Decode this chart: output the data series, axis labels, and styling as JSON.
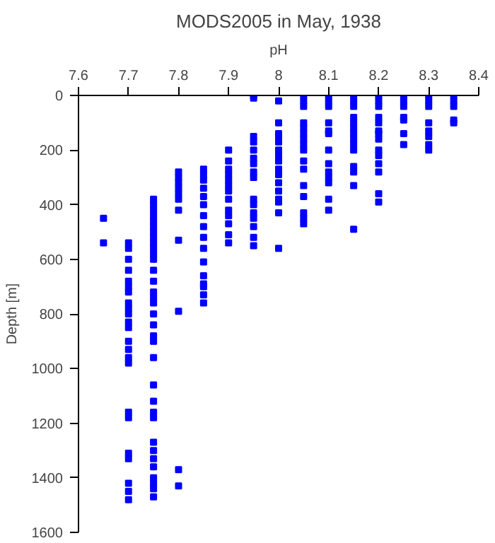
{
  "chart_data": {
    "type": "scatter",
    "title": "MODS2005 in May, 1938",
    "xlabel": "pH",
    "ylabel": "Depth [m]",
    "xlim": [
      7.6,
      8.4
    ],
    "xticks": [
      7.6,
      7.7,
      7.8,
      7.9,
      8,
      8.1,
      8.2,
      8.3,
      8.4
    ],
    "ylim": [
      1600,
      0
    ],
    "yticks": [
      0,
      200,
      400,
      600,
      800,
      1000,
      1200,
      1400,
      1600
    ],
    "grid": false,
    "marker": "square",
    "series": [
      {
        "color": "#0000ff",
        "x": [
          7.65,
          7.65,
          7.7,
          7.7,
          7.7,
          7.7,
          7.7,
          7.7,
          7.7,
          7.7,
          7.7,
          7.7,
          7.7,
          7.7,
          7.7,
          7.7,
          7.7,
          7.7,
          7.7,
          7.7,
          7.7,
          7.7,
          7.7,
          7.7,
          7.7,
          7.75,
          7.75,
          7.75,
          7.75,
          7.75,
          7.75,
          7.75,
          7.75,
          7.75,
          7.75,
          7.75,
          7.75,
          7.75,
          7.75,
          7.75,
          7.75,
          7.75,
          7.75,
          7.75,
          7.75,
          7.75,
          7.75,
          7.75,
          7.75,
          7.75,
          7.75,
          7.75,
          7.75,
          7.75,
          7.75,
          7.75,
          7.75,
          7.75,
          7.75,
          7.8,
          7.8,
          7.8,
          7.8,
          7.8,
          7.8,
          7.8,
          7.8,
          7.8,
          7.8,
          7.8,
          7.85,
          7.85,
          7.85,
          7.85,
          7.85,
          7.85,
          7.85,
          7.85,
          7.85,
          7.85,
          7.85,
          7.85,
          7.85,
          7.85,
          7.85,
          7.85,
          7.9,
          7.9,
          7.9,
          7.9,
          7.9,
          7.9,
          7.9,
          7.9,
          7.9,
          7.9,
          7.9,
          7.9,
          7.9,
          7.95,
          7.95,
          7.95,
          7.95,
          7.95,
          7.95,
          7.95,
          7.95,
          7.95,
          7.95,
          7.95,
          7.95,
          7.95,
          7.95,
          7.95,
          7.95,
          8.0,
          8.0,
          8.0,
          8.0,
          8.0,
          8.0,
          8.0,
          8.0,
          8.0,
          8.0,
          8.0,
          8.0,
          8.0,
          8.0,
          8.0,
          8.0,
          8.05,
          8.05,
          8.05,
          8.05,
          8.05,
          8.05,
          8.05,
          8.05,
          8.05,
          8.05,
          8.05,
          8.05,
          8.05,
          8.05,
          8.05,
          8.05,
          8.1,
          8.1,
          8.1,
          8.1,
          8.1,
          8.1,
          8.1,
          8.1,
          8.1,
          8.1,
          8.1,
          8.1,
          8.1,
          8.15,
          8.15,
          8.15,
          8.15,
          8.15,
          8.15,
          8.15,
          8.15,
          8.15,
          8.15,
          8.15,
          8.15,
          8.15,
          8.15,
          8.2,
          8.2,
          8.2,
          8.2,
          8.2,
          8.2,
          8.2,
          8.2,
          8.2,
          8.2,
          8.2,
          8.2,
          8.2,
          8.2,
          8.25,
          8.25,
          8.25,
          8.25,
          8.25,
          8.25,
          8.25,
          8.3,
          8.3,
          8.3,
          8.3,
          8.3,
          8.3,
          8.3,
          8.3,
          8.35,
          8.35,
          8.35,
          8.35,
          8.35
        ],
        "values": [
          450,
          540,
          540,
          560,
          600,
          640,
          680,
          700,
          720,
          760,
          780,
          800,
          830,
          850,
          900,
          930,
          960,
          980,
          1160,
          1180,
          1310,
          1330,
          1420,
          1450,
          1480,
          380,
          400,
          420,
          440,
          460,
          480,
          500,
          520,
          540,
          560,
          580,
          600,
          640,
          680,
          720,
          740,
          760,
          800,
          840,
          880,
          900,
          960,
          1060,
          1120,
          1160,
          1180,
          1270,
          1300,
          1330,
          1360,
          1400,
          1420,
          1440,
          1470,
          280,
          300,
          320,
          340,
          360,
          380,
          420,
          530,
          790,
          1370,
          1430,
          270,
          290,
          310,
          340,
          370,
          400,
          440,
          480,
          520,
          560,
          610,
          660,
          690,
          700,
          730,
          760,
          200,
          240,
          270,
          290,
          310,
          330,
          350,
          380,
          420,
          440,
          470,
          510,
          540,
          0,
          10,
          150,
          170,
          200,
          230,
          250,
          280,
          300,
          380,
          400,
          430,
          450,
          480,
          520,
          550,
          20,
          100,
          140,
          160,
          170,
          200,
          220,
          240,
          270,
          290,
          320,
          350,
          380,
          390,
          430,
          560,
          0,
          20,
          40,
          100,
          120,
          140,
          160,
          180,
          200,
          240,
          270,
          330,
          370,
          430,
          450,
          470,
          0,
          20,
          40,
          100,
          130,
          140,
          200,
          250,
          280,
          300,
          320,
          380,
          420,
          0,
          20,
          40,
          80,
          100,
          120,
          140,
          160,
          180,
          200,
          260,
          280,
          330,
          490,
          0,
          20,
          40,
          80,
          100,
          130,
          140,
          160,
          200,
          220,
          250,
          280,
          360,
          390,
          0,
          20,
          40,
          80,
          90,
          140,
          180,
          0,
          20,
          40,
          100,
          130,
          150,
          180,
          200,
          0,
          20,
          40,
          90,
          100
        ]
      }
    ]
  }
}
